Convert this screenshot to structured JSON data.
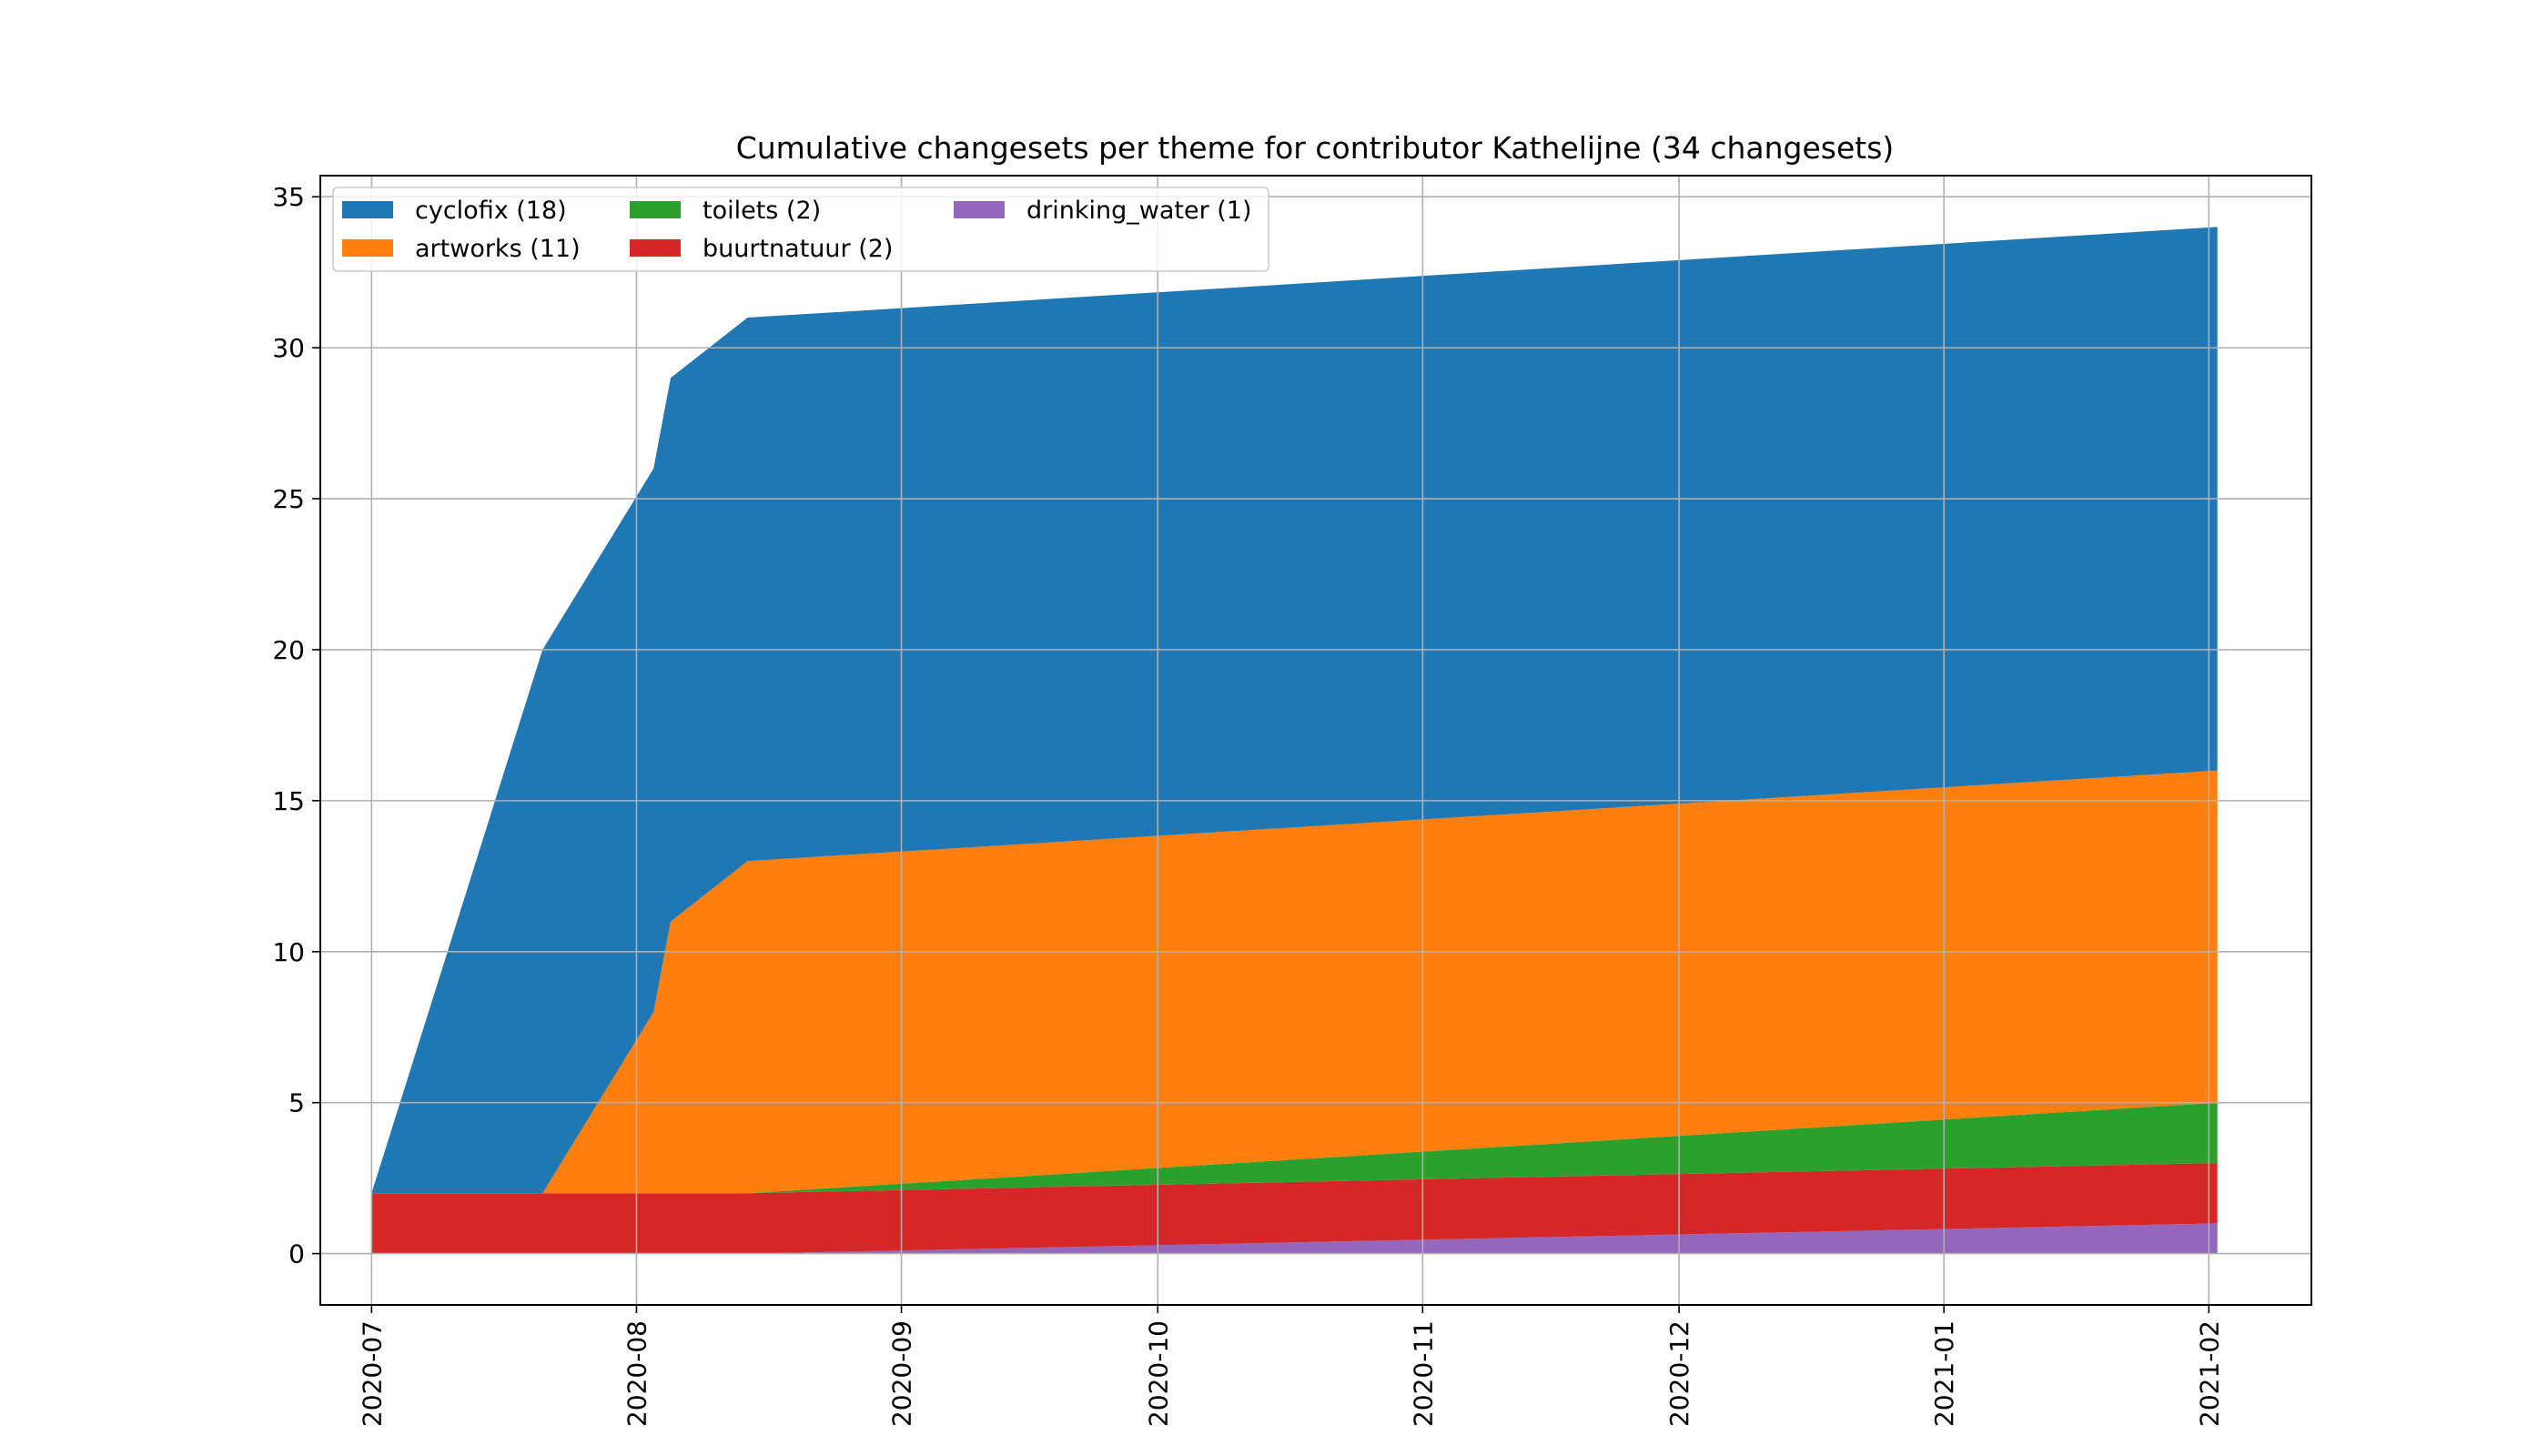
{
  "chart_data": {
    "type": "area",
    "stacked": true,
    "title": "Cumulative changesets per theme for contributor Kathelijne (34 changesets)",
    "xlabel": "",
    "ylabel": "",
    "x_ticks": [
      "2020-07",
      "2020-08",
      "2020-09",
      "2020-10",
      "2020-11",
      "2020-12",
      "2021-01",
      "2021-02"
    ],
    "x_range": [
      "2020-06-25",
      "2021-02-13"
    ],
    "ylim": [
      -1.7,
      35.7
    ],
    "y_ticks": [
      0,
      5,
      10,
      15,
      20,
      25,
      30,
      35
    ],
    "grid": true,
    "legend_position": "top-left",
    "legend_columns": 3,
    "x": [
      "2020-07-01",
      "2020-07-21",
      "2020-08-03",
      "2020-08-05",
      "2020-08-14",
      "2021-02-02"
    ],
    "series": [
      {
        "name": "drinking_water (1)",
        "color": "#9467bd",
        "values": [
          0,
          0,
          0,
          0,
          0,
          1
        ]
      },
      {
        "name": "buurtnatuur (2)",
        "color": "#d62728",
        "values": [
          2,
          2,
          2,
          2,
          2,
          2
        ]
      },
      {
        "name": "toilets (2)",
        "color": "#2ca02c",
        "values": [
          0,
          0,
          0,
          0,
          0,
          2
        ]
      },
      {
        "name": "artworks (11)",
        "color": "#ff7f0e",
        "values": [
          0,
          0,
          6,
          9,
          11,
          11
        ]
      },
      {
        "name": "cyclofix (18)",
        "color": "#1f77b4",
        "values": [
          0,
          18,
          18,
          18,
          18,
          18
        ]
      }
    ],
    "legend_order": [
      "cyclofix (18)",
      "artworks (11)",
      "toilets (2)",
      "buurtnatuur (2)",
      "drinking_water (1)"
    ]
  }
}
